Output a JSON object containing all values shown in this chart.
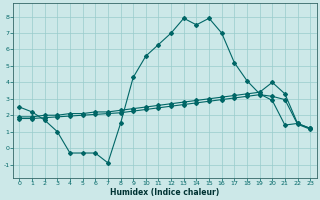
{
  "xlabel": "Humidex (Indice chaleur)",
  "background_color": "#cce8e8",
  "grid_color": "#99cccc",
  "line_color": "#006666",
  "spine_color": "#336666",
  "xlim": [
    -0.5,
    23.5
  ],
  "ylim": [
    -1.8,
    8.8
  ],
  "x_ticks": [
    0,
    1,
    2,
    3,
    4,
    5,
    6,
    7,
    8,
    9,
    10,
    11,
    12,
    13,
    14,
    15,
    16,
    17,
    18,
    19,
    20,
    21,
    22,
    23
  ],
  "y_ticks": [
    -1,
    0,
    1,
    2,
    3,
    4,
    5,
    6,
    7,
    8
  ],
  "line1_x": [
    0,
    1,
    2,
    3,
    4,
    5,
    6,
    7,
    8,
    9,
    10,
    11,
    12,
    13,
    14,
    15,
    16,
    17,
    18,
    19,
    20,
    21,
    22,
    23
  ],
  "line1_y": [
    2.5,
    2.2,
    1.7,
    1.0,
    -0.3,
    -0.3,
    -0.3,
    -0.9,
    1.5,
    4.3,
    5.6,
    6.3,
    7.0,
    7.9,
    7.5,
    7.9,
    7.0,
    5.2,
    4.1,
    3.3,
    2.9,
    1.4,
    1.5,
    1.2
  ],
  "line2_x": [
    0,
    1,
    2,
    3,
    4,
    5,
    6,
    7,
    8,
    9,
    10,
    11,
    12,
    13,
    14,
    15,
    16,
    17,
    18,
    19,
    20,
    21,
    22,
    23
  ],
  "line2_y": [
    1.9,
    1.9,
    2.0,
    2.0,
    2.1,
    2.1,
    2.2,
    2.2,
    2.3,
    2.4,
    2.5,
    2.6,
    2.7,
    2.8,
    2.9,
    3.0,
    3.1,
    3.2,
    3.3,
    3.4,
    4.0,
    3.3,
    1.5,
    1.2
  ],
  "line3_x": [
    0,
    1,
    2,
    3,
    4,
    5,
    6,
    7,
    8,
    9,
    10,
    11,
    12,
    13,
    14,
    15,
    16,
    17,
    18,
    19,
    20,
    21,
    22,
    23
  ],
  "line3_y": [
    1.8,
    1.8,
    1.85,
    1.9,
    1.95,
    2.0,
    2.05,
    2.1,
    2.15,
    2.25,
    2.35,
    2.45,
    2.55,
    2.65,
    2.75,
    2.85,
    2.95,
    3.05,
    3.15,
    3.25,
    3.15,
    2.95,
    1.45,
    1.15
  ],
  "xlabel_fontsize": 5.5,
  "xlabel_color": "#003333",
  "tick_labelsize": 4.5,
  "lw": 0.8,
  "ms": 2.0
}
